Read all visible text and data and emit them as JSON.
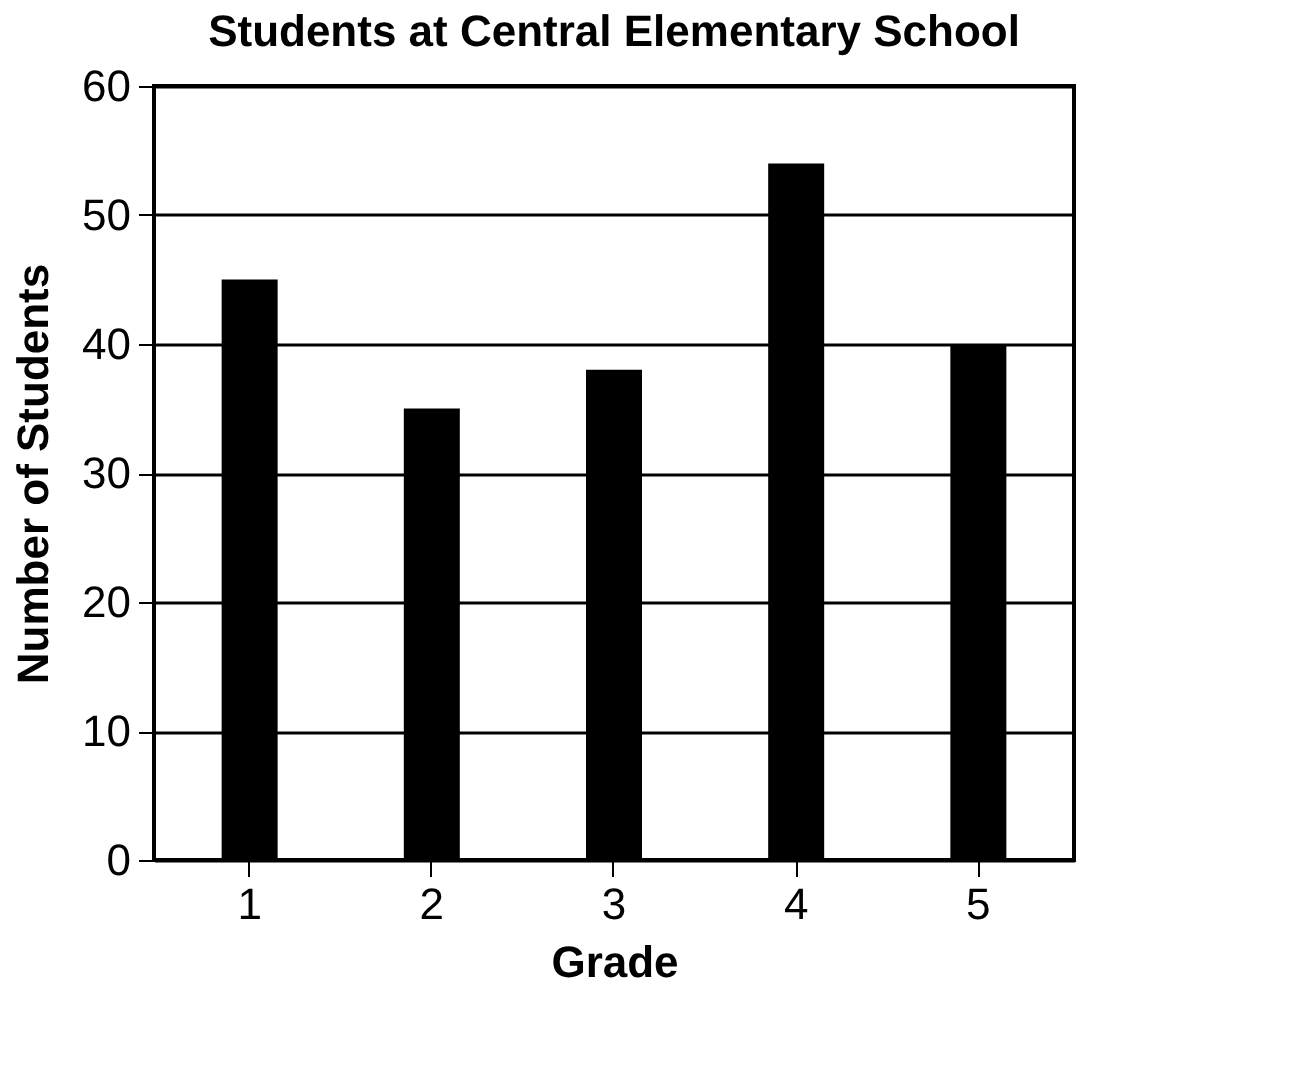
{
  "chart_data": {
    "type": "bar",
    "title": "Students at Central Elementary School",
    "xlabel": "Grade",
    "ylabel": "Number of Students",
    "categories": [
      "1",
      "2",
      "3",
      "4",
      "5"
    ],
    "values": [
      45,
      35,
      38,
      54,
      40
    ],
    "color": "#000000",
    "ylim": [
      0,
      60
    ],
    "yticks": [
      0,
      10,
      20,
      30,
      40,
      50,
      60
    ],
    "grid": "y"
  }
}
